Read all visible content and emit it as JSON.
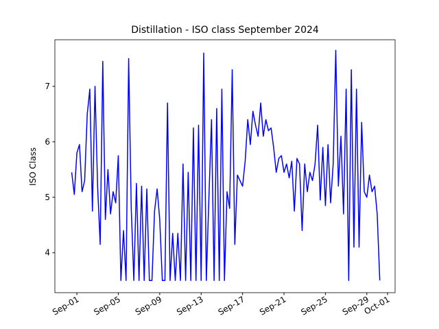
{
  "chart_data": {
    "type": "line",
    "title": "Distillation - ISO class September 2024",
    "ylabel": "ISO Class",
    "x": [
      "2024-08-31T12:00",
      "2024-08-31T18:00",
      "2024-09-01T00:00",
      "2024-09-01T06:00",
      "2024-09-01T12:00",
      "2024-09-01T18:00",
      "2024-09-02T00:00",
      "2024-09-02T06:00",
      "2024-09-02T12:00",
      "2024-09-02T18:00",
      "2024-09-03T00:00",
      "2024-09-03T06:00",
      "2024-09-03T12:00",
      "2024-09-03T18:00",
      "2024-09-04T00:00",
      "2024-09-04T06:00",
      "2024-09-04T12:00",
      "2024-09-04T18:00",
      "2024-09-05T00:00",
      "2024-09-05T06:00",
      "2024-09-05T12:00",
      "2024-09-05T18:00",
      "2024-09-06T00:00",
      "2024-09-06T06:00",
      "2024-09-06T12:00",
      "2024-09-06T18:00",
      "2024-09-07T00:00",
      "2024-09-07T06:00",
      "2024-09-07T12:00",
      "2024-09-07T18:00",
      "2024-09-08T00:00",
      "2024-09-08T06:00",
      "2024-09-08T12:00",
      "2024-09-08T18:00",
      "2024-09-09T00:00",
      "2024-09-09T06:00",
      "2024-09-09T12:00",
      "2024-09-09T18:00",
      "2024-09-10T00:00",
      "2024-09-10T06:00",
      "2024-09-10T12:00",
      "2024-09-10T18:00",
      "2024-09-11T00:00",
      "2024-09-11T06:00",
      "2024-09-11T12:00",
      "2024-09-11T18:00",
      "2024-09-12T00:00",
      "2024-09-12T06:00",
      "2024-09-12T12:00",
      "2024-09-12T18:00",
      "2024-09-13T00:00",
      "2024-09-13T06:00",
      "2024-09-13T12:00",
      "2024-09-13T18:00",
      "2024-09-14T00:00",
      "2024-09-14T06:00",
      "2024-09-14T12:00",
      "2024-09-14T18:00",
      "2024-09-15T00:00",
      "2024-09-15T06:00",
      "2024-09-15T12:00",
      "2024-09-15T18:00",
      "2024-09-16T00:00",
      "2024-09-16T06:00",
      "2024-09-16T12:00",
      "2024-09-16T18:00",
      "2024-09-17T00:00",
      "2024-09-17T06:00",
      "2024-09-17T12:00",
      "2024-09-17T18:00",
      "2024-09-18T00:00",
      "2024-09-18T06:00",
      "2024-09-18T12:00",
      "2024-09-18T18:00",
      "2024-09-19T00:00",
      "2024-09-19T06:00",
      "2024-09-19T12:00",
      "2024-09-19T18:00",
      "2024-09-20T00:00",
      "2024-09-20T06:00",
      "2024-09-20T12:00",
      "2024-09-20T18:00",
      "2024-09-21T00:00",
      "2024-09-21T06:00",
      "2024-09-21T12:00",
      "2024-09-21T18:00",
      "2024-09-22T00:00",
      "2024-09-22T06:00",
      "2024-09-22T12:00",
      "2024-09-22T18:00",
      "2024-09-23T00:00",
      "2024-09-23T06:00",
      "2024-09-23T12:00",
      "2024-09-23T18:00",
      "2024-09-24T00:00",
      "2024-09-24T06:00",
      "2024-09-24T12:00",
      "2024-09-24T18:00",
      "2024-09-25T00:00",
      "2024-09-25T06:00",
      "2024-09-25T12:00",
      "2024-09-25T18:00",
      "2024-09-26T00:00",
      "2024-09-26T06:00",
      "2024-09-26T12:00",
      "2024-09-26T18:00",
      "2024-09-27T00:00",
      "2024-09-27T06:00",
      "2024-09-27T12:00",
      "2024-09-27T18:00",
      "2024-09-28T00:00",
      "2024-09-28T06:00",
      "2024-09-28T12:00",
      "2024-09-28T18:00",
      "2024-09-29T00:00",
      "2024-09-29T06:00",
      "2024-09-29T12:00",
      "2024-09-29T18:00",
      "2024-09-30T00:00",
      "2024-09-30T06:00"
    ],
    "series": [
      {
        "name": "ISO Class",
        "color": "#0000ff",
        "values": [
          5.45,
          5.05,
          5.8,
          5.95,
          5.1,
          5.3,
          6.5,
          6.95,
          4.75,
          7.0,
          5.2,
          4.15,
          7.45,
          4.6,
          5.5,
          4.7,
          5.1,
          4.9,
          5.75,
          3.5,
          4.4,
          3.5,
          7.5,
          4.8,
          3.5,
          5.25,
          3.5,
          5.2,
          3.5,
          5.15,
          3.5,
          3.5,
          4.75,
          5.15,
          4.6,
          3.5,
          3.5,
          6.7,
          3.5,
          4.35,
          3.5,
          4.35,
          3.5,
          5.6,
          3.5,
          5.45,
          3.5,
          6.25,
          3.5,
          6.3,
          3.5,
          7.6,
          3.5,
          5.0,
          6.4,
          3.5,
          6.6,
          3.5,
          6.95,
          3.5,
          5.1,
          4.8,
          7.3,
          4.15,
          5.4,
          5.3,
          5.2,
          5.65,
          6.4,
          5.95,
          6.55,
          6.3,
          6.1,
          6.7,
          6.1,
          6.4,
          6.2,
          6.25,
          5.9,
          5.45,
          5.7,
          5.75,
          5.45,
          5.6,
          5.35,
          5.65,
          4.75,
          5.7,
          5.6,
          4.4,
          5.6,
          5.1,
          5.45,
          5.3,
          5.6,
          6.3,
          4.95,
          5.9,
          4.85,
          5.95,
          4.9,
          5.6,
          7.65,
          5.2,
          6.1,
          4.7,
          6.95,
          3.5,
          7.3,
          4.1,
          6.95,
          4.1,
          6.35,
          5.1,
          5.0,
          5.4,
          5.1,
          5.2,
          4.7,
          3.5
        ]
      }
    ],
    "xlim": [
      "2024-08-29T21:00",
      "2024-10-01T17:30"
    ],
    "xticks": [
      {
        "value": "2024-09-01",
        "label": "Sep-01"
      },
      {
        "value": "2024-09-05",
        "label": "Sep-05"
      },
      {
        "value": "2024-09-09",
        "label": "Sep-09"
      },
      {
        "value": "2024-09-13",
        "label": "Sep-13"
      },
      {
        "value": "2024-09-17",
        "label": "Sep-17"
      },
      {
        "value": "2024-09-21",
        "label": "Sep-21"
      },
      {
        "value": "2024-09-25",
        "label": "Sep-25"
      },
      {
        "value": "2024-09-29",
        "label": "Sep-29"
      },
      {
        "value": "2024-10-01",
        "label": "Oct-01"
      }
    ],
    "ylim": [
      3.28,
      7.84
    ],
    "yticks": [
      4,
      5,
      6,
      7
    ],
    "grid": false
  }
}
